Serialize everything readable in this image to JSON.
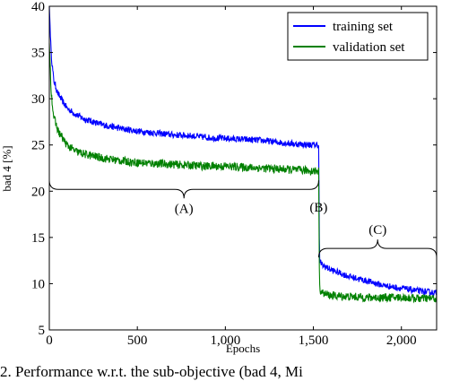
{
  "chart_data": {
    "type": "line",
    "title": "",
    "xlabel": "Epochs",
    "ylabel": "bad 4 [%]",
    "xlim": [
      0,
      2200
    ],
    "ylim": [
      5,
      40
    ],
    "xticks": [
      0,
      500,
      1000,
      1500,
      2000
    ],
    "xtick_labels": [
      "0",
      "500",
      "1,000",
      "1,500",
      "2,000"
    ],
    "yticks": [
      5,
      10,
      15,
      20,
      25,
      30,
      35,
      40
    ],
    "ytick_labels": [
      "5",
      "10",
      "15",
      "20",
      "25",
      "30",
      "35",
      "40"
    ],
    "grid": false,
    "legend_position": "top-right",
    "series": [
      {
        "name": "training set",
        "color": "#0000ff",
        "x": [
          0,
          10,
          25,
          50,
          100,
          150,
          200,
          300,
          400,
          500,
          600,
          700,
          800,
          900,
          1000,
          1100,
          1200,
          1300,
          1400,
          1500,
          1530,
          1535,
          1550,
          1600,
          1700,
          1800,
          1900,
          2000,
          2100,
          2200
        ],
        "y": [
          40,
          35,
          32,
          30.5,
          29,
          28.3,
          27.8,
          27.2,
          26.8,
          26.5,
          26.3,
          26.1,
          26,
          25.8,
          25.7,
          25.6,
          25.5,
          25.3,
          25.1,
          25,
          25,
          12.5,
          12,
          11.5,
          10.8,
          10.3,
          9.8,
          9.5,
          9.2,
          9
        ]
      },
      {
        "name": "validation set",
        "color": "#008000",
        "x": [
          0,
          10,
          25,
          50,
          100,
          150,
          200,
          300,
          400,
          500,
          600,
          700,
          800,
          900,
          1000,
          1100,
          1200,
          1300,
          1400,
          1500,
          1530,
          1535,
          1550,
          1600,
          1700,
          1800,
          1900,
          2000,
          2100,
          2200
        ],
        "y": [
          36,
          31,
          28,
          26.5,
          25,
          24.3,
          24,
          23.6,
          23.3,
          23.1,
          23,
          22.9,
          22.8,
          22.7,
          22.7,
          22.6,
          22.5,
          22.4,
          22.3,
          22.2,
          22.2,
          9.5,
          9,
          8.7,
          8.6,
          8.5,
          8.5,
          8.5,
          8.4,
          8.4
        ]
      }
    ],
    "annotations": [
      {
        "label": "(A)",
        "x_start": 0,
        "x_end": 1530,
        "y": 20,
        "brace": "down"
      },
      {
        "label": "(B)",
        "x": 1530,
        "y": 17.5
      },
      {
        "label": "(C)",
        "x_start": 1530,
        "x_end": 2200,
        "y": 14,
        "brace": "up"
      }
    ]
  },
  "caption": "2. Performance w.r.t. the sub-objective (bad 4, Mi"
}
